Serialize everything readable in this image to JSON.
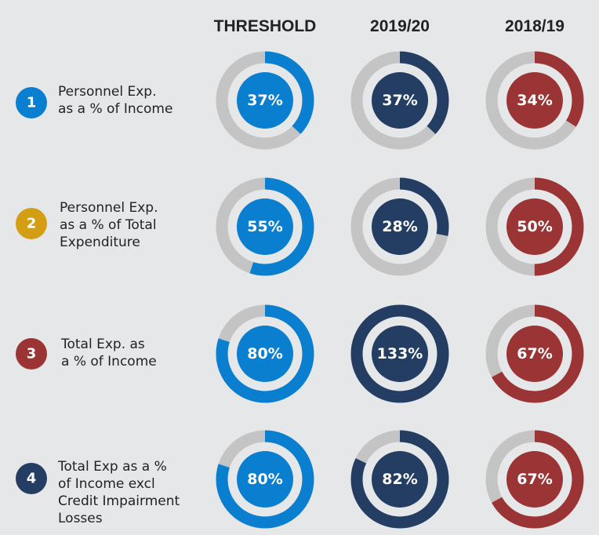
{
  "chart_data": {
    "type": "donut-grid",
    "categories": [
      "Personnel Exp.\nas a % of Income",
      "Personnel Exp.\nas a % of Total\nExpenditure",
      "Total Exp. as\na % of Income",
      "Total Exp as a %\nof Income excl\nCredit Impairment\nLosses"
    ],
    "row_numbers": [
      "1",
      "2",
      "3",
      "4"
    ],
    "row_colors": [
      "#0a7fd0",
      "#d39e13",
      "#9b3535",
      "#243d63"
    ],
    "track_color": "#c4c4c4",
    "series": [
      {
        "name": "THRESHOLD",
        "color": "#0a7fd0",
        "values": [
          37,
          55,
          80,
          80
        ],
        "value_labels": [
          "37%",
          "55%",
          "80%",
          "80%"
        ]
      },
      {
        "name": "2019/20",
        "color": "#243d63",
        "values": [
          37,
          28,
          133,
          82
        ],
        "value_labels": [
          "37%",
          "28%",
          "133%",
          "82%"
        ]
      },
      {
        "name": "2018/19",
        "color": "#9b3535",
        "values": [
          34,
          50,
          67,
          67
        ],
        "value_labels": [
          "34%",
          "50%",
          "67%",
          "67%"
        ]
      }
    ]
  }
}
